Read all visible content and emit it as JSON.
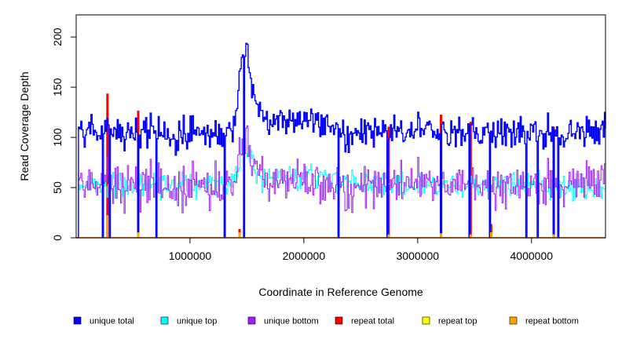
{
  "chart_data": {
    "type": "line",
    "title": "",
    "xlabel": "Coordinate in Reference Genome",
    "ylabel": "Read Coverage Depth",
    "xlim": [
      0,
      4650000
    ],
    "ylim": [
      0,
      222
    ],
    "x_ticks": [
      1000000,
      2000000,
      3000000,
      4000000
    ],
    "x_tick_labels": [
      "1000000",
      "2000000",
      "3000000",
      "4000000"
    ],
    "y_ticks": [
      0,
      50,
      100,
      150,
      200
    ],
    "y_tick_labels": [
      "0",
      "50",
      "100",
      "150",
      "200"
    ],
    "grid": false,
    "legend_position": "bottom",
    "bin_size": 10000,
    "series": [
      {
        "name": "unique total",
        "color": "#0000ff"
      },
      {
        "name": "unique top",
        "color": "#00ffff"
      },
      {
        "name": "unique bottom",
        "color": "#a020f0"
      },
      {
        "name": "repeat total",
        "color": "#ff0000"
      },
      {
        "name": "repeat top",
        "color": "#ffff00"
      },
      {
        "name": "repeat bottom",
        "color": "#ffa500"
      }
    ],
    "coverage_profile": {
      "baseline_total": 105,
      "baseline_strand": 52,
      "peak": {
        "center": 1480000,
        "height_total": 190,
        "height_strand": 90
      },
      "plateau": {
        "start": 1550000,
        "end": 2350000,
        "total": 120,
        "strand": 60
      },
      "dropouts": [
        5000,
        230000,
        290000,
        540000,
        700000,
        1300000,
        1470000,
        2300000,
        2730000,
        3200000,
        3450000,
        3630000,
        3950000,
        4050000,
        4190000,
        4230000
      ],
      "repeat_spikes": [
        {
          "x": 270000,
          "total": 143,
          "bottom": 22
        },
        {
          "x": 540000,
          "total": 126,
          "bottom": 5
        },
        {
          "x": 1430000,
          "total": 8,
          "bottom": 5
        },
        {
          "x": 2740000,
          "total": 110,
          "bottom": 3
        },
        {
          "x": 3200000,
          "total": 122,
          "bottom": 4
        },
        {
          "x": 3460000,
          "total": 115,
          "bottom": 3
        },
        {
          "x": 3640000,
          "total": 13,
          "bottom": 5
        },
        {
          "x": 4190000,
          "total": 110,
          "bottom": 3
        }
      ]
    }
  }
}
